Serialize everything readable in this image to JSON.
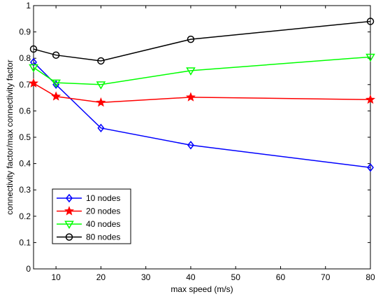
{
  "chart_data": {
    "type": "line",
    "title": "",
    "xlabel": "max speed (m/s)",
    "ylabel": "connectivity factor/max connectivity factor",
    "xlim": [
      5,
      80
    ],
    "ylim": [
      0,
      1
    ],
    "xticks": [
      10,
      20,
      30,
      40,
      50,
      60,
      70,
      80
    ],
    "yticks": [
      0,
      0.1,
      0.2,
      0.3,
      0.4,
      0.5,
      0.6,
      0.7,
      0.8,
      0.9,
      1
    ],
    "ytick_labels": [
      "0",
      "0.1",
      "0.2",
      "0.3",
      "0.4",
      "0.5",
      "0.6",
      "0.7",
      "0.8",
      "0.9",
      "1"
    ],
    "grid": false,
    "legend_position": "bottom-left",
    "x": [
      5,
      10,
      20,
      40,
      80
    ],
    "series": [
      {
        "name": "10 nodes",
        "color": "#0000ff",
        "marker": "diamond",
        "values": [
          0.785,
          0.7,
          0.535,
          0.47,
          0.385
        ]
      },
      {
        "name": "20 nodes",
        "color": "#ff0000",
        "marker": "star",
        "values": [
          0.705,
          0.655,
          0.632,
          0.652,
          0.643
        ]
      },
      {
        "name": "40 nodes",
        "color": "#00ff00",
        "marker": "triangle-down",
        "values": [
          0.765,
          0.707,
          0.7,
          0.753,
          0.805
        ]
      },
      {
        "name": "80 nodes",
        "color": "#000000",
        "marker": "circle",
        "values": [
          0.835,
          0.812,
          0.79,
          0.872,
          0.94
        ]
      }
    ]
  }
}
